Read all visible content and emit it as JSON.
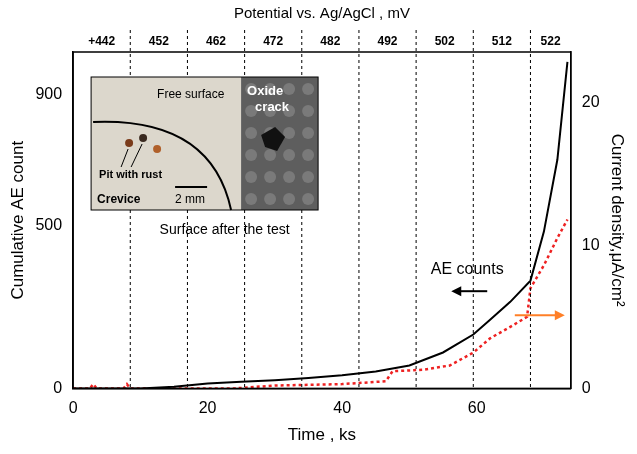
{
  "chart_data": {
    "type": "line",
    "x_label": "Time , ks",
    "y_label": "Cumulative AE count",
    "y2_label": "Current density,μA/cm²",
    "xlim": [
      0,
      74
    ],
    "xticks": [
      0,
      20,
      40,
      60
    ],
    "ylim": [
      0,
      1030
    ],
    "yticks": [
      0,
      500,
      900
    ],
    "y2lim": [
      0,
      23.5
    ],
    "y2ticks": [
      0,
      10,
      20
    ],
    "grid": false,
    "series": [
      {
        "color": "#000000",
        "line_style": "solid",
        "axis": "y",
        "x": [
          0,
          10,
          15,
          20,
          25,
          30,
          35,
          40,
          45,
          50,
          55,
          59.5,
          62,
          65,
          68,
          70,
          72,
          73.5
        ],
        "values": [
          0,
          0,
          5,
          15,
          20,
          25,
          32,
          40,
          52,
          70,
          110,
          165,
          210,
          265,
          330,
          480,
          700,
          1000
        ]
      },
      {
        "color": "#ee2222",
        "line_style": "dotted",
        "axis": "y2",
        "x": [
          0,
          2.5,
          3,
          3.5,
          7.5,
          8,
          8.5,
          24,
          30,
          40,
          46.5,
          47.5,
          52,
          56,
          59.5,
          62,
          65,
          67.5,
          68,
          70,
          72,
          73.5
        ],
        "values": [
          0,
          0,
          0.3,
          0,
          0,
          0.3,
          0,
          0,
          0.2,
          0.3,
          0.5,
          1.2,
          1.3,
          1.6,
          2.5,
          3.5,
          4.3,
          5,
          7,
          8.6,
          10.5,
          11.8
        ]
      }
    ],
    "potential_axis": {
      "title": "Potential vs. Ag/AgCl , mV",
      "steps": [
        {
          "start": 0,
          "end": 8.5,
          "label": "+442"
        },
        {
          "start": 8.5,
          "end": 17,
          "label": "452"
        },
        {
          "start": 17,
          "end": 25.5,
          "label": "462"
        },
        {
          "start": 25.5,
          "end": 34,
          "label": "472"
        },
        {
          "start": 34,
          "end": 42.5,
          "label": "482"
        },
        {
          "start": 42.5,
          "end": 51,
          "label": "492"
        },
        {
          "start": 51,
          "end": 59.5,
          "label": "502"
        },
        {
          "start": 59.5,
          "end": 68,
          "label": "512"
        },
        {
          "start": 68,
          "end": 74,
          "label": "522"
        }
      ]
    },
    "annotations": [
      {
        "text": "AE counts",
        "x": 58.6,
        "y": 365
      }
    ],
    "inset": {
      "left_photo": [
        "Free surface",
        "Pit with rust",
        "Crevice",
        "2 mm"
      ],
      "right_photo": [
        "Oxide crack"
      ],
      "caption": "Surface after the test"
    }
  }
}
